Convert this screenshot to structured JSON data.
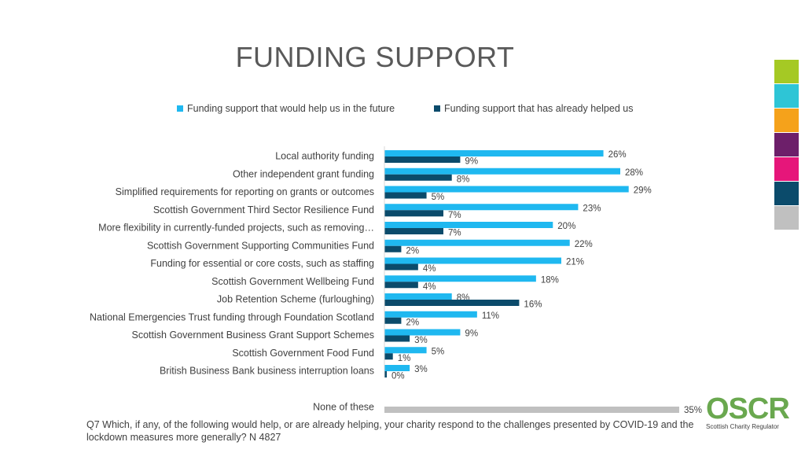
{
  "title": "FUNDING SUPPORT",
  "legend": {
    "items": [
      {
        "label": "Funding support that would help us in the future",
        "color": "#1fb8f0"
      },
      {
        "label": "Funding support that has already helped us",
        "color": "#0b4b6b"
      }
    ]
  },
  "colors": {
    "future": "#1fb8f0",
    "already": "#0b4b6b",
    "none": "#c0c0c0"
  },
  "chart_data": {
    "type": "bar",
    "orientation": "horizontal",
    "categories": [
      "Local authority funding",
      "Other independent grant funding",
      "Simplified requirements for reporting on grants or outcomes",
      "Scottish Government Third Sector Resilience Fund",
      "More flexibility in currently-funded projects, such as removing…",
      "Scottish Government Supporting Communities Fund",
      "Funding for essential or core costs, such as staffing",
      "Scottish Government Wellbeing Fund",
      "Job Retention Scheme (furloughing)",
      "National Emergencies Trust funding through Foundation Scotland",
      "Scottish Government Business Grant Support Schemes",
      "Scottish Government Food Fund",
      "British Business Bank business interruption loans"
    ],
    "series": [
      {
        "name": "Funding support that would help us in the future",
        "values": [
          26,
          28,
          29,
          23,
          20,
          22,
          21,
          18,
          8,
          11,
          9,
          5,
          3
        ]
      },
      {
        "name": "Funding support that has already helped us",
        "values": [
          9,
          8,
          5,
          7,
          7,
          2,
          4,
          4,
          16,
          2,
          3,
          1,
          0
        ]
      }
    ],
    "value_labels": {
      "future": [
        "26%",
        "28%",
        "29%",
        "23%",
        "20%",
        "22%",
        "21%",
        "18%",
        "8%",
        "11%",
        "9%",
        "5%",
        "3%"
      ],
      "already": [
        "9%",
        "8%",
        "5%",
        "7%",
        "7%",
        "2%",
        "4%",
        "4%",
        "16%",
        "2%",
        "3%",
        "1%",
        "0%"
      ]
    },
    "none": {
      "label": "None of these",
      "value": 35,
      "value_label": "35%"
    },
    "xlim": [
      0,
      35
    ],
    "grid": false,
    "legend_position": "top"
  },
  "footnote": "Q7 Which, if any, of the following would help, or are already helping, your charity respond to the challenges presented by COVID-19 and the lockdown measures more generally? N 4827",
  "logo": {
    "name": "OSCR",
    "subtitle": "Scottish Charity Regulator"
  },
  "side_stripes": [
    "#a5c924",
    "#2ec5d6",
    "#f5a21b",
    "#6d1f6a",
    "#e6167a",
    "#0b4b6b",
    "#c0c0c0"
  ]
}
